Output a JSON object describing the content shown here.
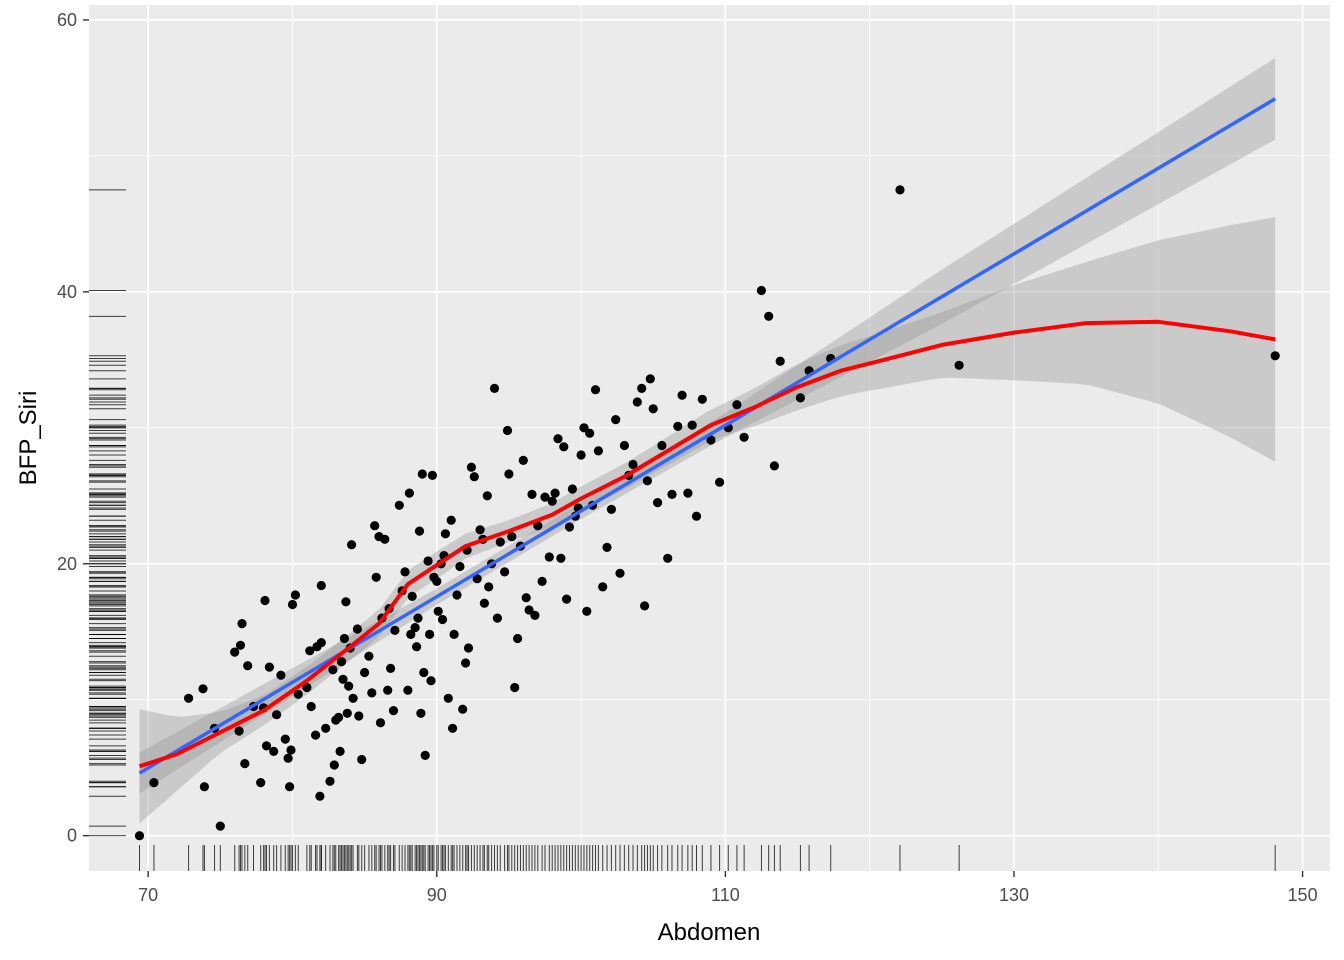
{
  "chart_data": {
    "type": "scatter",
    "xlabel": "Abdomen",
    "ylabel": "BFP_Siri",
    "xlim": [
      65.9,
      151.9
    ],
    "ylim": [
      -2.6,
      61.1
    ],
    "x_ticks": [
      70,
      90,
      110,
      130,
      150
    ],
    "y_ticks": [
      0,
      20,
      40,
      60
    ],
    "grid": true,
    "colors": {
      "panel": "#ebebeb",
      "grid": "#ffffff",
      "points": "#000000",
      "linear_fit": "#3366ff",
      "loess_fit": "#ff0000",
      "ribbon": "#999999",
      "rug": "#000000"
    },
    "points": [
      [
        69.4,
        0.0
      ],
      [
        70.4,
        3.9
      ],
      [
        72.8,
        10.1
      ],
      [
        73.8,
        10.8
      ],
      [
        73.9,
        3.6
      ],
      [
        74.6,
        7.9
      ],
      [
        75.0,
        0.7
      ],
      [
        76.0,
        13.5
      ],
      [
        76.3,
        7.7
      ],
      [
        76.4,
        14.0
      ],
      [
        76.5,
        15.6
      ],
      [
        76.7,
        5.3
      ],
      [
        76.9,
        12.5
      ],
      [
        77.3,
        9.5
      ],
      [
        77.8,
        3.9
      ],
      [
        78.0,
        9.4
      ],
      [
        78.1,
        17.3
      ],
      [
        78.2,
        6.6
      ],
      [
        78.4,
        12.4
      ],
      [
        78.7,
        6.2
      ],
      [
        78.9,
        8.9
      ],
      [
        79.2,
        11.8
      ],
      [
        79.5,
        7.1
      ],
      [
        79.7,
        5.7
      ],
      [
        79.8,
        3.6
      ],
      [
        79.9,
        6.3
      ],
      [
        80.0,
        17.0
      ],
      [
        80.2,
        17.7
      ],
      [
        80.4,
        10.4
      ],
      [
        81.0,
        10.9
      ],
      [
        81.2,
        13.6
      ],
      [
        81.3,
        9.5
      ],
      [
        81.6,
        7.4
      ],
      [
        81.7,
        13.9
      ],
      [
        81.9,
        2.9
      ],
      [
        82.0,
        18.4
      ],
      [
        82.0,
        14.2
      ],
      [
        82.3,
        7.9
      ],
      [
        82.6,
        4.0
      ],
      [
        82.8,
        12.2
      ],
      [
        82.9,
        5.2
      ],
      [
        83.0,
        8.5
      ],
      [
        83.2,
        8.7
      ],
      [
        83.3,
        6.2
      ],
      [
        83.4,
        12.8
      ],
      [
        83.5,
        11.5
      ],
      [
        83.6,
        14.5
      ],
      [
        83.7,
        17.2
      ],
      [
        83.8,
        9.0
      ],
      [
        83.9,
        11.0
      ],
      [
        84.0,
        13.8
      ],
      [
        84.1,
        21.4
      ],
      [
        84.2,
        10.1
      ],
      [
        84.5,
        15.2
      ],
      [
        84.6,
        8.8
      ],
      [
        84.8,
        5.6
      ],
      [
        85.0,
        12.0
      ],
      [
        85.3,
        13.2
      ],
      [
        85.5,
        10.5
      ],
      [
        85.7,
        22.8
      ],
      [
        85.8,
        19.0
      ],
      [
        86.0,
        22.0
      ],
      [
        86.1,
        8.3
      ],
      [
        86.2,
        16.0
      ],
      [
        86.4,
        21.8
      ],
      [
        86.6,
        10.7
      ],
      [
        86.7,
        16.7
      ],
      [
        86.8,
        12.3
      ],
      [
        87.0,
        9.2
      ],
      [
        87.1,
        15.1
      ],
      [
        87.4,
        24.3
      ],
      [
        87.6,
        18.0
      ],
      [
        87.8,
        19.4
      ],
      [
        88.0,
        10.7
      ],
      [
        88.1,
        25.2
      ],
      [
        88.2,
        14.8
      ],
      [
        88.3,
        17.6
      ],
      [
        88.5,
        15.3
      ],
      [
        88.6,
        13.9
      ],
      [
        88.7,
        16.0
      ],
      [
        88.8,
        22.4
      ],
      [
        88.9,
        9.0
      ],
      [
        89.0,
        26.6
      ],
      [
        89.1,
        12.0
      ],
      [
        89.2,
        5.9
      ],
      [
        89.4,
        20.2
      ],
      [
        89.5,
        14.8
      ],
      [
        89.6,
        11.4
      ],
      [
        89.7,
        26.5
      ],
      [
        89.8,
        19.0
      ],
      [
        90.0,
        18.7
      ],
      [
        90.1,
        16.5
      ],
      [
        90.3,
        20.0
      ],
      [
        90.4,
        15.9
      ],
      [
        90.5,
        20.6
      ],
      [
        90.6,
        22.2
      ],
      [
        90.8,
        10.1
      ],
      [
        91.0,
        23.2
      ],
      [
        91.1,
        7.9
      ],
      [
        91.2,
        14.8
      ],
      [
        91.4,
        17.7
      ],
      [
        91.6,
        19.8
      ],
      [
        91.8,
        9.3
      ],
      [
        92.0,
        12.7
      ],
      [
        92.1,
        21.0
      ],
      [
        92.2,
        13.8
      ],
      [
        92.4,
        27.1
      ],
      [
        92.6,
        26.4
      ],
      [
        92.8,
        18.9
      ],
      [
        93.0,
        22.5
      ],
      [
        93.2,
        21.8
      ],
      [
        93.3,
        17.1
      ],
      [
        93.5,
        25.0
      ],
      [
        93.6,
        18.3
      ],
      [
        93.8,
        20.0
      ],
      [
        94.0,
        32.9
      ],
      [
        94.2,
        16.0
      ],
      [
        94.4,
        21.6
      ],
      [
        94.7,
        19.4
      ],
      [
        94.9,
        29.8
      ],
      [
        95.0,
        26.6
      ],
      [
        95.2,
        22.0
      ],
      [
        95.4,
        10.9
      ],
      [
        95.6,
        14.5
      ],
      [
        95.8,
        21.3
      ],
      [
        96.0,
        27.6
      ],
      [
        96.2,
        17.5
      ],
      [
        96.4,
        16.6
      ],
      [
        96.6,
        25.1
      ],
      [
        96.8,
        16.2
      ],
      [
        97.0,
        22.8
      ],
      [
        97.3,
        18.7
      ],
      [
        97.5,
        24.9
      ],
      [
        97.8,
        20.5
      ],
      [
        98.0,
        24.6
      ],
      [
        98.2,
        25.2
      ],
      [
        98.4,
        29.2
      ],
      [
        98.6,
        20.4
      ],
      [
        98.8,
        28.6
      ],
      [
        99.0,
        17.4
      ],
      [
        99.2,
        22.7
      ],
      [
        99.4,
        25.5
      ],
      [
        99.6,
        23.5
      ],
      [
        99.8,
        24.1
      ],
      [
        100.0,
        28.0
      ],
      [
        100.2,
        30.0
      ],
      [
        100.4,
        16.5
      ],
      [
        100.6,
        29.6
      ],
      [
        100.8,
        24.3
      ],
      [
        101.0,
        32.8
      ],
      [
        101.2,
        28.3
      ],
      [
        101.5,
        18.3
      ],
      [
        101.8,
        21.2
      ],
      [
        102.1,
        24.0
      ],
      [
        102.4,
        30.6
      ],
      [
        102.7,
        19.3
      ],
      [
        103.0,
        28.7
      ],
      [
        103.3,
        26.5
      ],
      [
        103.6,
        27.3
      ],
      [
        103.9,
        31.9
      ],
      [
        104.2,
        32.9
      ],
      [
        104.4,
        16.9
      ],
      [
        104.6,
        26.1
      ],
      [
        104.8,
        33.6
      ],
      [
        105.0,
        31.4
      ],
      [
        105.3,
        24.5
      ],
      [
        105.6,
        28.7
      ],
      [
        106.0,
        20.4
      ],
      [
        106.3,
        25.1
      ],
      [
        106.7,
        30.1
      ],
      [
        107.0,
        32.4
      ],
      [
        107.4,
        25.2
      ],
      [
        107.7,
        30.2
      ],
      [
        108.0,
        23.5
      ],
      [
        108.4,
        32.1
      ],
      [
        109.0,
        29.1
      ],
      [
        109.6,
        26.0
      ],
      [
        110.2,
        30.0
      ],
      [
        110.8,
        31.7
      ],
      [
        111.3,
        29.3
      ],
      [
        112.5,
        40.1
      ],
      [
        113.0,
        38.2
      ],
      [
        113.4,
        27.2
      ],
      [
        113.8,
        34.9
      ],
      [
        115.2,
        32.2
      ],
      [
        115.8,
        34.2
      ],
      [
        117.3,
        35.1
      ],
      [
        122.1,
        47.5
      ],
      [
        126.2,
        34.6
      ],
      [
        148.1,
        35.3
      ]
    ],
    "linear_fit": [
      [
        69.4,
        4.6
      ],
      [
        148.1,
        54.2
      ]
    ],
    "linear_ci_halfwidth": [
      [
        69.4,
        1.5
      ],
      [
        90,
        0.6
      ],
      [
        100,
        0.6
      ],
      [
        110,
        0.9
      ],
      [
        125,
        2.0
      ],
      [
        148.1,
        3.0
      ]
    ],
    "loess_fit": [
      [
        69.4,
        5.1
      ],
      [
        72,
        6.0
      ],
      [
        75,
        7.6
      ],
      [
        78,
        9.2
      ],
      [
        81,
        11.4
      ],
      [
        84,
        13.9
      ],
      [
        86,
        15.6
      ],
      [
        88,
        18.5
      ],
      [
        90,
        19.9
      ],
      [
        92,
        21.3
      ],
      [
        95,
        22.4
      ],
      [
        98,
        23.6
      ],
      [
        100,
        24.8
      ],
      [
        103,
        26.4
      ],
      [
        106,
        28.3
      ],
      [
        109,
        30.2
      ],
      [
        112,
        31.5
      ],
      [
        115,
        33.0
      ],
      [
        118,
        34.2
      ],
      [
        121,
        35.0
      ],
      [
        125,
        36.1
      ],
      [
        130,
        37.0
      ],
      [
        135,
        37.7
      ],
      [
        140,
        37.8
      ],
      [
        145,
        37.1
      ],
      [
        148.1,
        36.5
      ]
    ],
    "loess_ci_halfwidth": [
      [
        69.4,
        4.2
      ],
      [
        72,
        2.7
      ],
      [
        75,
        1.5
      ],
      [
        78,
        1.1
      ],
      [
        82,
        1.0
      ],
      [
        86,
        1.0
      ],
      [
        90,
        1.0
      ],
      [
        95,
        0.8
      ],
      [
        100,
        0.9
      ],
      [
        105,
        1.0
      ],
      [
        110,
        1.2
      ],
      [
        115,
        1.7
      ],
      [
        120,
        2.0
      ],
      [
        125,
        2.4
      ],
      [
        130,
        3.5
      ],
      [
        135,
        4.5
      ],
      [
        140,
        6.0
      ],
      [
        145,
        7.8
      ],
      [
        148.1,
        9.0
      ]
    ]
  }
}
